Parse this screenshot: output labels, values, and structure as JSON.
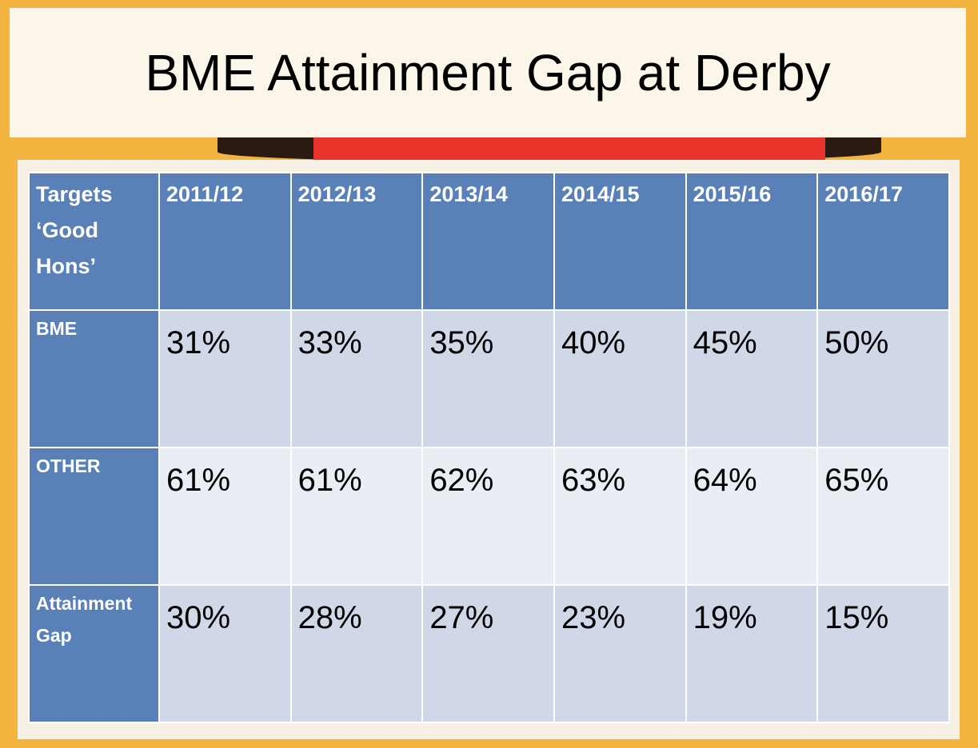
{
  "title": "BME Attainment Gap at Derby",
  "table": {
    "header": [
      "Targets ‘Good Hons’",
      "2011/12",
      "2012/13",
      "2013/14",
      "2014/15",
      "2015/16",
      "2016/17"
    ],
    "rows": [
      [
        "BME",
        "31%",
        "33%",
        "35%",
        "40%",
        "45%",
        "50%"
      ],
      [
        "OTHER",
        "61%",
        "61%",
        "62%",
        "63%",
        "64%",
        "65%"
      ],
      [
        "Attainment Gap",
        "30%",
        "28%",
        "27%",
        "23%",
        "19%",
        "15%"
      ]
    ]
  }
}
